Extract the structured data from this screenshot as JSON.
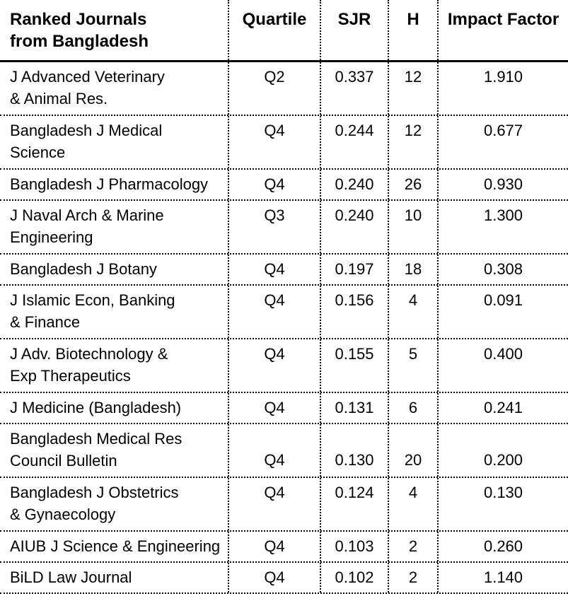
{
  "table": {
    "header": {
      "title": "Ranked Journals\nfrom Bangladesh",
      "columns": [
        "Quartile",
        "SJR",
        "H",
        "Impact Factor"
      ]
    },
    "rows": [
      {
        "journal": "J Advanced Veterinary\n& Animal Res.",
        "quartile": "Q2",
        "sjr": "0.337",
        "h": "12",
        "impact_factor": "1.910"
      },
      {
        "journal": "Bangladesh J Medical\nScience",
        "quartile": "Q4",
        "sjr": "0.244",
        "h": "12",
        "impact_factor": "0.677"
      },
      {
        "journal": "Bangladesh J Pharmacology",
        "quartile": "Q4",
        "sjr": "0.240",
        "h": "26",
        "impact_factor": "0.930"
      },
      {
        "journal": "J Naval Arch & Marine\nEngineering",
        "quartile": "Q3",
        "sjr": "0.240",
        "h": "10",
        "impact_factor": "1.300"
      },
      {
        "journal": "Bangladesh J Botany",
        "quartile": "Q4",
        "sjr": "0.197",
        "h": "18",
        "impact_factor": "0.308"
      },
      {
        "journal": "J Islamic Econ, Banking\n& Finance",
        "quartile": "Q4",
        "sjr": "0.156",
        "h": "4",
        "impact_factor": "0.091"
      },
      {
        "journal": "J Adv. Biotechnology &\nExp Therapeutics",
        "quartile": "Q4",
        "sjr": "0.155",
        "h": "5",
        "impact_factor": "0.400"
      },
      {
        "journal": "J Medicine (Bangladesh)",
        "quartile": "Q4",
        "sjr": "0.131",
        "h": "6",
        "impact_factor": "0.241"
      },
      {
        "journal": "Bangladesh Medical Res\nCouncil Bulletin",
        "quartile": "Q4",
        "sjr": "0.130",
        "h": "20",
        "impact_factor": "0.200",
        "align": "bottom"
      },
      {
        "journal": "Bangladesh J Obstetrics\n& Gynaecology",
        "quartile": "Q4",
        "sjr": "0.124",
        "h": "4",
        "impact_factor": "0.130"
      },
      {
        "journal": "AIUB J Science & Engineering",
        "quartile": "Q4",
        "sjr": "0.103",
        "h": "2",
        "impact_factor": "0.260"
      },
      {
        "journal": "BiLD Law Journal",
        "quartile": "Q4",
        "sjr": "0.102",
        "h": "2",
        "impact_factor": "1.140"
      }
    ]
  },
  "chart_data": {
    "type": "table",
    "title": "Ranked Journals from Bangladesh",
    "columns": [
      "Ranked Journals from Bangladesh",
      "Quartile",
      "SJR",
      "H",
      "Impact Factor"
    ],
    "rows": [
      [
        "J Advanced Veterinary & Animal Res.",
        "Q2",
        0.337,
        12,
        1.91
      ],
      [
        "Bangladesh J Medical Science",
        "Q4",
        0.244,
        12,
        0.677
      ],
      [
        "Bangladesh J Pharmacology",
        "Q4",
        0.24,
        26,
        0.93
      ],
      [
        "J Naval Arch & Marine Engineering",
        "Q3",
        0.24,
        10,
        1.3
      ],
      [
        "Bangladesh J Botany",
        "Q4",
        0.197,
        18,
        0.308
      ],
      [
        "J Islamic Econ, Banking & Finance",
        "Q4",
        0.156,
        4,
        0.091
      ],
      [
        "J Adv. Biotechnology & Exp Therapeutics",
        "Q4",
        0.155,
        5,
        0.4
      ],
      [
        "J Medicine (Bangladesh)",
        "Q4",
        0.131,
        6,
        0.241
      ],
      [
        "Bangladesh Medical Res Council Bulletin",
        "Q4",
        0.13,
        20,
        0.2
      ],
      [
        "Bangladesh J Obstetrics & Gynaecology",
        "Q4",
        0.124,
        4,
        0.13
      ],
      [
        "AIUB J Science & Engineering",
        "Q4",
        0.103,
        2,
        0.26
      ],
      [
        "BiLD Law Journal",
        "Q4",
        0.102,
        2,
        1.14
      ]
    ]
  }
}
